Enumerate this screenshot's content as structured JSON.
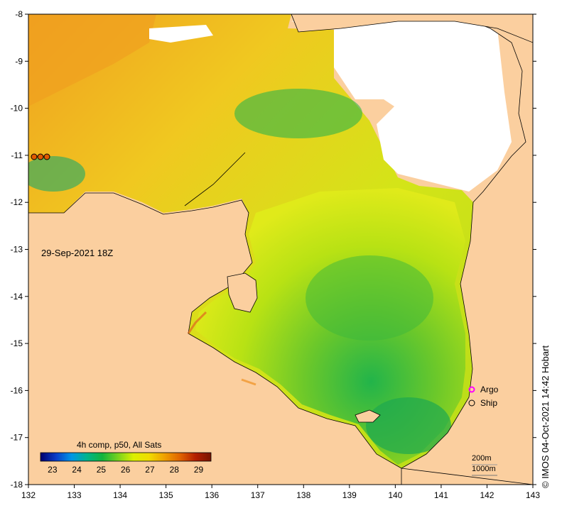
{
  "map": {
    "timestamp": "29-Sep-2021 18Z",
    "credit": "© IMOS 04-Oct-2021 14:42 Hobart",
    "composite_label": "4h comp, p50, All Sats",
    "lon_ticks": [
      "132",
      "133",
      "134",
      "135",
      "136",
      "137",
      "138",
      "139",
      "140",
      "141",
      "142",
      "143"
    ],
    "lat_ticks": [
      "-8",
      "-9",
      "-10",
      "-11",
      "-12",
      "-13",
      "-14",
      "-15",
      "-16",
      "-17",
      "-18"
    ],
    "lon_range": [
      132,
      143
    ],
    "lat_range": [
      -18,
      -8
    ],
    "colorbar": {
      "ticks": [
        "23",
        "24",
        "25",
        "26",
        "27",
        "28",
        "29"
      ],
      "range": [
        22.5,
        29.5
      ],
      "colors": [
        "#00006e",
        "#0a3cc8",
        "#0096e6",
        "#00b48c",
        "#14b43c",
        "#78d21e",
        "#dcf000",
        "#f0dc00",
        "#f0a000",
        "#e06400",
        "#b41e00",
        "#781400"
      ]
    },
    "legend": {
      "argo_label": "Argo",
      "ship_label": "Ship"
    },
    "contours": {
      "depth_200": "200m",
      "depth_1000": "1000m"
    },
    "colors": {
      "land": "#fbcf9f",
      "cloud": "#ffffff",
      "argo": "#ff00ff"
    }
  }
}
